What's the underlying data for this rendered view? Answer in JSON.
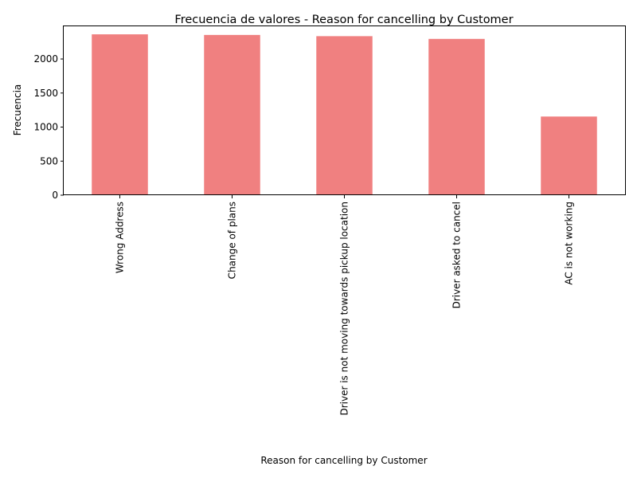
{
  "chart_data": {
    "type": "bar",
    "title": "Frecuencia de valores - Reason for cancelling by Customer",
    "xlabel": "Reason for cancelling by Customer",
    "ylabel": "Frecuencia",
    "categories": [
      "Wrong Address",
      "Change of plans",
      "Driver is not moving towards pickup location",
      "Driver asked to cancel",
      "AC is not working"
    ],
    "values": [
      2362,
      2353,
      2335,
      2295,
      1155
    ],
    "ylim": [
      0,
      2480
    ],
    "yticks": [
      0,
      500,
      1000,
      1500,
      2000
    ],
    "grid": false,
    "bar_color": "#f08080"
  }
}
